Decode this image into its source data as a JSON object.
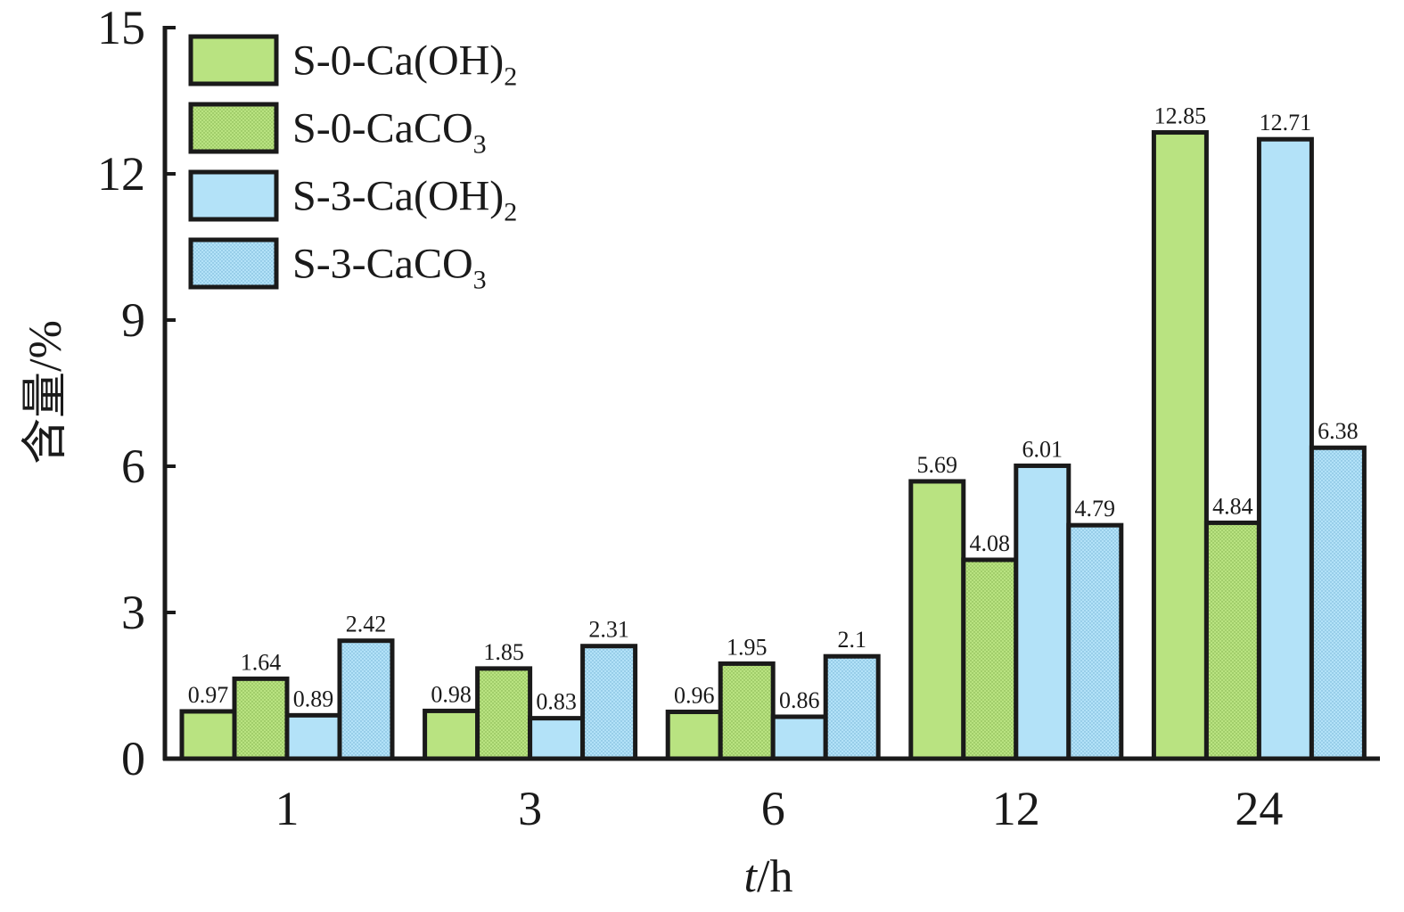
{
  "chart_data": {
    "type": "bar",
    "title": "",
    "xlabel_italic": "t",
    "xlabel_rest": "/h",
    "ylabel": "含量/%",
    "ylim": [
      0,
      15
    ],
    "yticks": [
      0,
      3,
      6,
      9,
      12,
      15
    ],
    "categories": [
      "1",
      "3",
      "6",
      "12",
      "24"
    ],
    "series": [
      {
        "name": "S-0-Ca(OH)2",
        "label_main": "S-0-Ca(OH)",
        "label_sub": "2",
        "color": "#b9e381",
        "pattern": "solid",
        "values": [
          0.97,
          0.98,
          0.96,
          5.69,
          12.85
        ],
        "value_labels": [
          "0.97",
          "0.98",
          "0.96",
          "5.69",
          "12.85"
        ]
      },
      {
        "name": "S-0-CaCO3",
        "label_main": "S-0-CaCO",
        "label_sub": "3",
        "color": "#b9e381",
        "pattern": "dotted",
        "values": [
          1.64,
          1.85,
          1.95,
          4.08,
          4.84
        ],
        "value_labels": [
          "1.64",
          "1.85",
          "1.95",
          "4.08",
          "4.84"
        ]
      },
      {
        "name": "S-3-Ca(OH)2",
        "label_main": "S-3-Ca(OH)",
        "label_sub": "2",
        "color": "#b3e2f8",
        "pattern": "solid",
        "values": [
          0.89,
          0.83,
          0.86,
          6.01,
          12.71
        ],
        "value_labels": [
          "0.89",
          "0.83",
          "0.86",
          "6.01",
          "12.71"
        ]
      },
      {
        "name": "S-3-CaCO3",
        "label_main": "S-3-CaCO",
        "label_sub": "3",
        "color": "#b3e2f8",
        "pattern": "dotted",
        "values": [
          2.42,
          2.31,
          2.1,
          4.79,
          6.38
        ],
        "value_labels": [
          "2.42",
          "2.31",
          "2.1",
          "4.79",
          "6.38"
        ]
      }
    ],
    "legend_position": "top-left",
    "grid": false
  }
}
